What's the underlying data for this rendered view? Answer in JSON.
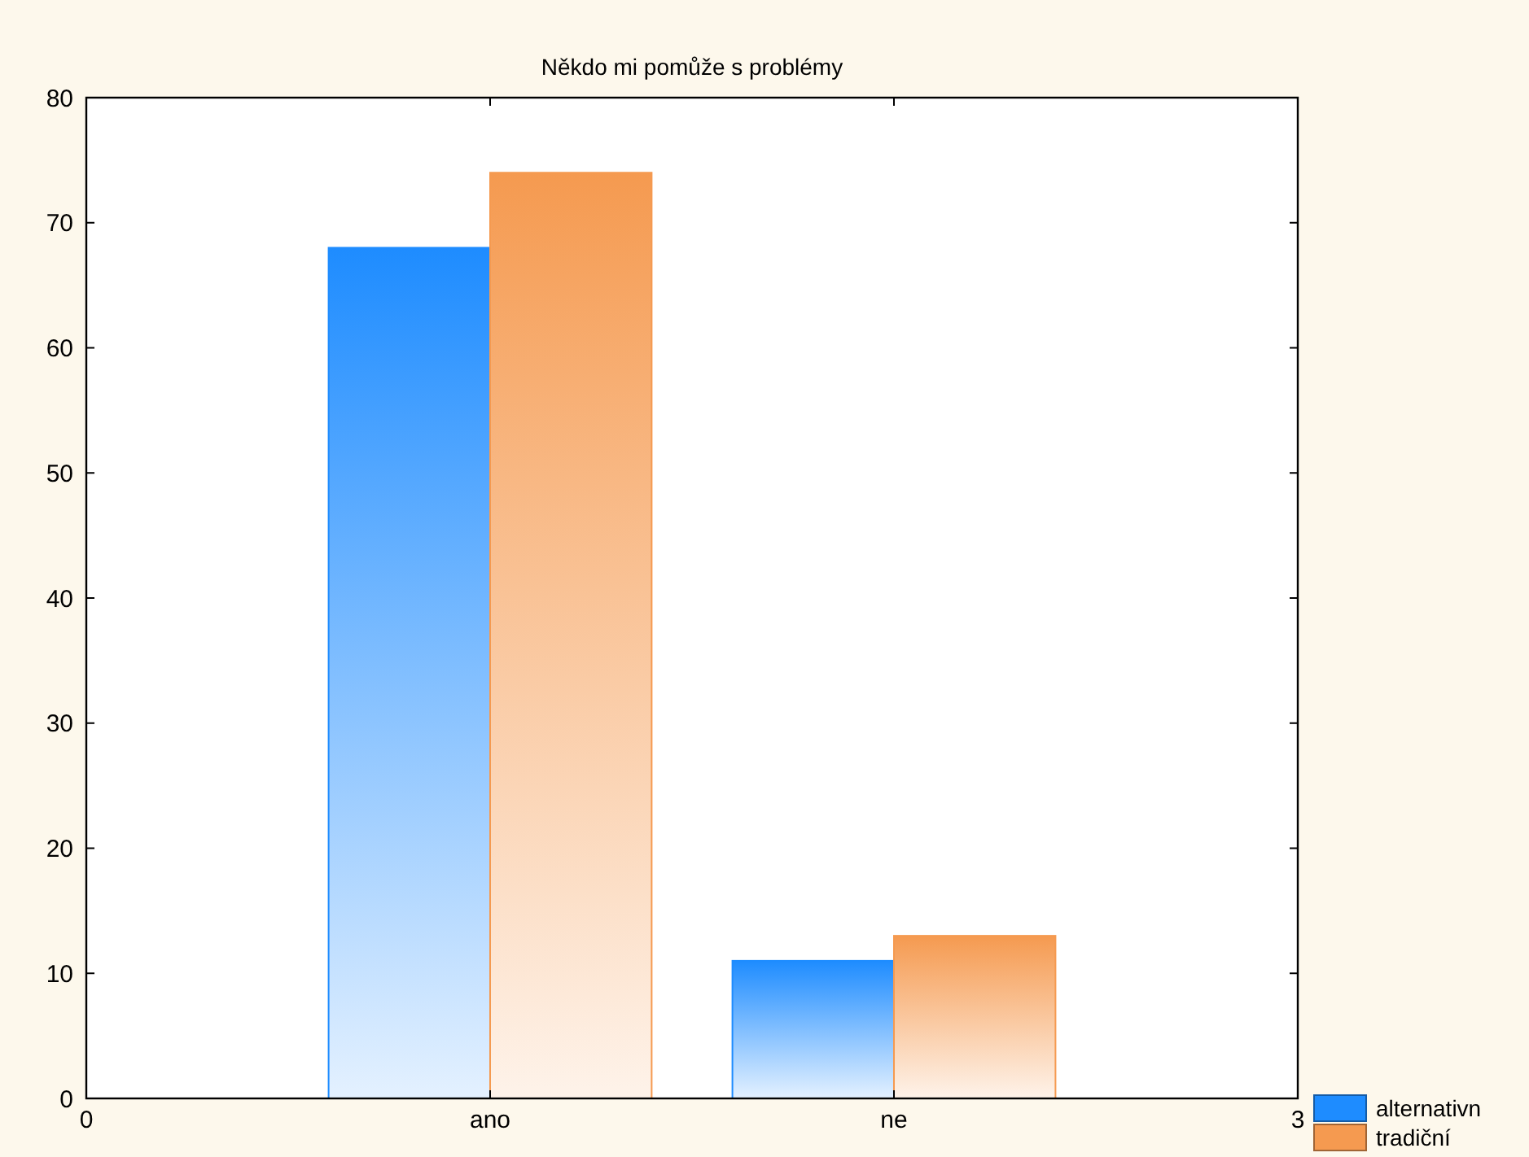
{
  "chart_data": {
    "type": "bar",
    "title": "Někdo mi pomůže s problémy",
    "x": [
      1,
      2
    ],
    "xlim": [
      0,
      3
    ],
    "xticks": [
      0,
      {
        "value": 1,
        "label": "ano"
      },
      {
        "value": 2,
        "label": "ne"
      },
      3
    ],
    "ylim": [
      0,
      80
    ],
    "yticks": [
      0,
      10,
      20,
      30,
      40,
      50,
      60,
      70,
      80
    ],
    "legend": "bottom right",
    "series": [
      {
        "name": "alternativn",
        "color": "#1e8cff",
        "values": [
          68,
          11
        ]
      },
      {
        "name": "tradiční",
        "color": "#f59a50",
        "values": [
          74,
          13
        ]
      }
    ]
  }
}
